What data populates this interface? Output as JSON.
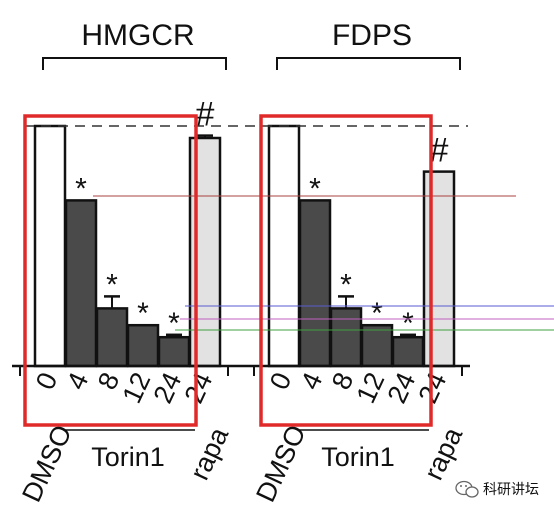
{
  "chart_data": [
    {
      "type": "bar",
      "title": "HMGCR",
      "categories": [
        "0",
        "4",
        "8",
        "12",
        "24",
        "24"
      ],
      "category_groups": [
        "DMSO",
        "Torin1",
        "Torin1",
        "Torin1",
        "Torin1",
        "rapa"
      ],
      "values": [
        1.0,
        0.69,
        0.24,
        0.17,
        0.12,
        0.95
      ],
      "errors": [
        0.0,
        0.0,
        0.05,
        0.0,
        0.01,
        0.01
      ],
      "markers": [
        "",
        "*",
        "*",
        "*",
        "*",
        "#"
      ],
      "bar_colors": [
        "#ffffff",
        "#4a4a4a",
        "#4a4a4a",
        "#4a4a4a",
        "#4a4a4a",
        "#e2e2e2"
      ],
      "ylim": [
        0,
        1.2
      ],
      "reference_line": 1.0,
      "highlight_range": [
        1,
        4
      ]
    },
    {
      "type": "bar",
      "title": "FDPS",
      "categories": [
        "0",
        "4",
        "8",
        "12",
        "24",
        "24"
      ],
      "category_groups": [
        "DMSO",
        "Torin1",
        "Torin1",
        "Torin1",
        "Torin1",
        "rapa"
      ],
      "values": [
        1.0,
        0.69,
        0.24,
        0.17,
        0.12,
        0.81
      ],
      "errors": [
        0.0,
        0.0,
        0.05,
        0.0,
        0.01,
        0.0
      ],
      "markers": [
        "",
        "*",
        "*",
        "*",
        "*",
        "#"
      ],
      "bar_colors": [
        "#ffffff",
        "#4a4a4a",
        "#4a4a4a",
        "#4a4a4a",
        "#4a4a4a",
        "#e2e2e2"
      ],
      "ylim": [
        0,
        1.2
      ],
      "reference_line": 1.0,
      "highlight_range": [
        1,
        4
      ]
    }
  ],
  "group_labels": {
    "dmso": "DMSO",
    "torin": "Torin1",
    "rapa": "rapa"
  },
  "colors": {
    "highlight_box": "#e02a2a",
    "line_red": "#a84040",
    "line_blue": "#5a5ad0",
    "line_magenta": "#c060c0",
    "line_green": "#40a040"
  },
  "watermark": {
    "text": "科研讲坛",
    "icon": "wechat-icon"
  }
}
